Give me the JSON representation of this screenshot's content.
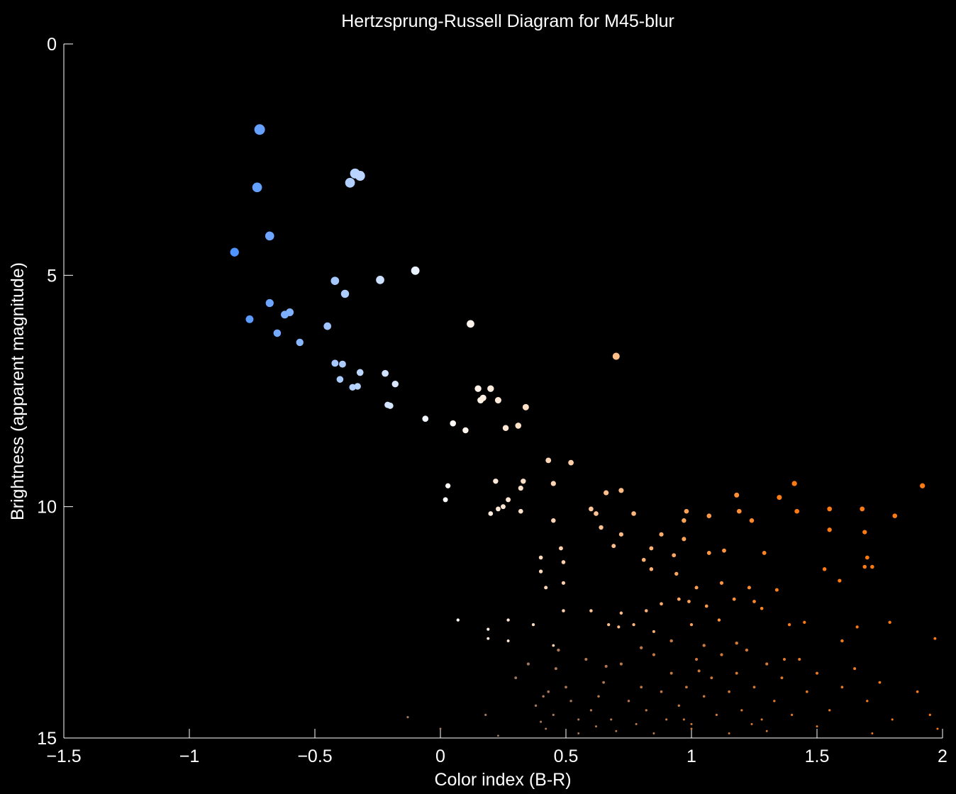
{
  "chart_data": {
    "type": "scatter",
    "title": "Hertzsprung-Russell Diagram for M45-blur",
    "xlabel": "Color index (B-R)",
    "ylabel": "Brightness (apparent magnitude)",
    "xlim": [
      -1.5,
      2
    ],
    "ylim": [
      0,
      15
    ],
    "y_inverted": true,
    "grid": false,
    "background": "#000000",
    "foreground": "#ffffff",
    "color_scale": {
      "blue": "#4a90ff",
      "white": "#ffffff",
      "orange": "#ff7a10",
      "faint": "#a07860"
    },
    "x_ticks": [
      "-1.5",
      "-1",
      "-0.5",
      "0",
      "0.5",
      "1",
      "1.5",
      "2"
    ],
    "y_ticks": [
      "0",
      "5",
      "10",
      "15"
    ],
    "series": [
      {
        "points": [
          [
            -0.72,
            1.85
          ],
          [
            -0.73,
            3.1
          ],
          [
            -0.34,
            2.8
          ],
          [
            -0.32,
            2.85
          ],
          [
            -0.36,
            3.0
          ],
          [
            -0.68,
            4.15
          ],
          [
            -0.82,
            4.5
          ],
          [
            -0.1,
            4.9
          ],
          [
            -0.24,
            5.1
          ],
          [
            -0.42,
            5.12
          ],
          [
            -0.38,
            5.4
          ],
          [
            -0.68,
            5.6
          ],
          [
            -0.6,
            5.8
          ],
          [
            -0.62,
            5.85
          ],
          [
            -0.76,
            5.95
          ],
          [
            -0.45,
            6.1
          ],
          [
            -0.65,
            6.25
          ],
          [
            -0.56,
            6.45
          ],
          [
            0.12,
            6.05
          ],
          [
            0.7,
            6.75
          ],
          [
            -0.42,
            6.9
          ],
          [
            -0.39,
            6.92
          ],
          [
            -0.32,
            7.1
          ],
          [
            -0.22,
            7.12
          ],
          [
            -0.4,
            7.25
          ],
          [
            -0.33,
            7.4
          ],
          [
            -0.35,
            7.42
          ],
          [
            -0.18,
            7.35
          ],
          [
            0.15,
            7.45
          ],
          [
            0.2,
            7.45
          ],
          [
            0.16,
            7.7
          ],
          [
            0.17,
            7.65
          ],
          [
            0.23,
            7.7
          ],
          [
            -0.21,
            7.8
          ],
          [
            -0.2,
            7.82
          ],
          [
            0.34,
            7.85
          ],
          [
            -0.06,
            8.1
          ],
          [
            0.05,
            8.2
          ],
          [
            0.1,
            8.35
          ],
          [
            0.26,
            8.3
          ],
          [
            0.31,
            8.25
          ],
          [
            0.43,
            9.0
          ],
          [
            0.52,
            9.05
          ],
          [
            0.22,
            9.45
          ],
          [
            0.33,
            9.45
          ],
          [
            0.03,
            9.55
          ],
          [
            0.32,
            9.6
          ],
          [
            0.45,
            9.5
          ],
          [
            0.02,
            9.85
          ],
          [
            0.27,
            9.85
          ],
          [
            0.25,
            10.0
          ],
          [
            0.23,
            10.05
          ],
          [
            0.2,
            10.15
          ],
          [
            0.32,
            10.1
          ],
          [
            0.45,
            10.3
          ],
          [
            0.66,
            9.7
          ],
          [
            0.72,
            9.65
          ],
          [
            0.6,
            10.05
          ],
          [
            0.62,
            10.15
          ],
          [
            0.64,
            10.45
          ],
          [
            0.72,
            10.6
          ],
          [
            0.69,
            10.85
          ],
          [
            0.48,
            10.9
          ],
          [
            0.4,
            11.1
          ],
          [
            0.49,
            11.2
          ],
          [
            0.4,
            11.4
          ],
          [
            0.49,
            11.65
          ],
          [
            0.42,
            11.75
          ],
          [
            0.77,
            10.15
          ],
          [
            0.88,
            10.6
          ],
          [
            0.84,
            10.9
          ],
          [
            0.98,
            10.1
          ],
          [
            0.97,
            10.3
          ],
          [
            0.97,
            10.7
          ],
          [
            0.93,
            11.05
          ],
          [
            1.07,
            10.2
          ],
          [
            1.07,
            11.0
          ],
          [
            1.13,
            10.95
          ],
          [
            0.81,
            11.15
          ],
          [
            0.84,
            11.35
          ],
          [
            0.94,
            11.45
          ],
          [
            1.18,
            9.75
          ],
          [
            1.19,
            10.1
          ],
          [
            1.24,
            10.3
          ],
          [
            1.35,
            9.8
          ],
          [
            1.41,
            9.5
          ],
          [
            1.42,
            10.1
          ],
          [
            1.55,
            10.05
          ],
          [
            1.55,
            10.5
          ],
          [
            1.68,
            10.05
          ],
          [
            1.69,
            10.55
          ],
          [
            1.81,
            10.2
          ],
          [
            1.92,
            9.55
          ],
          [
            1.29,
            11.0
          ],
          [
            1.34,
            11.8
          ],
          [
            1.53,
            11.35
          ],
          [
            1.59,
            11.6
          ],
          [
            1.7,
            11.1
          ],
          [
            1.69,
            11.3
          ],
          [
            1.72,
            11.3
          ],
          [
            1.02,
            11.75
          ],
          [
            1.12,
            11.65
          ],
          [
            1.23,
            11.75
          ],
          [
            1.25,
            12.05
          ],
          [
            1.28,
            12.2
          ],
          [
            1.06,
            12.15
          ],
          [
            1.17,
            12.0
          ],
          [
            0.99,
            12.05
          ],
          [
            0.95,
            12.0
          ],
          [
            0.88,
            12.1
          ],
          [
            0.82,
            12.25
          ],
          [
            0.72,
            12.3
          ],
          [
            0.71,
            12.6
          ],
          [
            0.6,
            12.25
          ],
          [
            0.67,
            12.55
          ],
          [
            0.77,
            12.55
          ],
          [
            0.85,
            12.7
          ],
          [
            1.0,
            12.55
          ],
          [
            1.11,
            12.45
          ],
          [
            1.39,
            12.55
          ],
          [
            1.45,
            12.5
          ],
          [
            1.66,
            12.6
          ],
          [
            1.79,
            12.5
          ],
          [
            1.97,
            12.85
          ],
          [
            0.07,
            12.45
          ],
          [
            0.19,
            12.65
          ],
          [
            0.19,
            12.85
          ],
          [
            0.27,
            12.45
          ],
          [
            0.27,
            12.9
          ],
          [
            0.37,
            12.55
          ],
          [
            0.49,
            12.25
          ],
          [
            0.45,
            13.0
          ]
        ],
        "faint_points": [
          [
            0.3,
            13.7
          ],
          [
            0.35,
            13.4
          ],
          [
            0.38,
            14.3
          ],
          [
            0.41,
            14.1
          ],
          [
            0.43,
            14.0
          ],
          [
            0.45,
            14.5
          ],
          [
            0.47,
            13.1
          ],
          [
            0.5,
            13.9
          ],
          [
            0.52,
            14.2
          ],
          [
            0.55,
            14.6
          ],
          [
            0.58,
            13.3
          ],
          [
            0.6,
            14.4
          ],
          [
            0.63,
            14.1
          ],
          [
            0.65,
            13.8
          ],
          [
            0.68,
            14.6
          ],
          [
            0.72,
            13.4
          ],
          [
            0.75,
            14.2
          ],
          [
            0.78,
            14.7
          ],
          [
            0.8,
            13.9
          ],
          [
            0.82,
            14.4
          ],
          [
            0.85,
            13.2
          ],
          [
            0.88,
            14.0
          ],
          [
            0.9,
            14.6
          ],
          [
            0.92,
            13.6
          ],
          [
            0.95,
            14.3
          ],
          [
            0.98,
            13.9
          ],
          [
            1.0,
            14.7
          ],
          [
            1.02,
            13.3
          ],
          [
            1.05,
            14.1
          ],
          [
            1.08,
            13.7
          ],
          [
            1.1,
            14.5
          ],
          [
            1.12,
            13.2
          ],
          [
            1.15,
            14.0
          ],
          [
            1.18,
            13.6
          ],
          [
            1.2,
            14.4
          ],
          [
            1.22,
            13.1
          ],
          [
            1.25,
            13.9
          ],
          [
            1.28,
            14.6
          ],
          [
            1.3,
            13.4
          ],
          [
            1.33,
            14.2
          ],
          [
            1.36,
            13.7
          ],
          [
            1.4,
            14.5
          ],
          [
            1.43,
            13.3
          ],
          [
            1.46,
            14.0
          ],
          [
            1.5,
            13.6
          ],
          [
            1.55,
            14.4
          ],
          [
            1.6,
            13.9
          ],
          [
            1.65,
            13.5
          ],
          [
            1.7,
            14.2
          ],
          [
            1.75,
            13.8
          ],
          [
            1.8,
            14.6
          ],
          [
            1.9,
            14.0
          ],
          [
            1.95,
            14.5
          ],
          [
            0.42,
            14.8
          ],
          [
            0.55,
            14.9
          ],
          [
            0.7,
            14.85
          ],
          [
            0.85,
            14.9
          ],
          [
            1.0,
            14.8
          ],
          [
            1.15,
            14.9
          ],
          [
            1.3,
            14.85
          ],
          [
            0.92,
            12.9
          ],
          [
            1.05,
            13.0
          ],
          [
            1.18,
            12.95
          ],
          [
            0.8,
            13.05
          ],
          [
            -0.13,
            14.55
          ],
          [
            0.18,
            14.5
          ],
          [
            0.0,
            14.8
          ],
          [
            0.23,
            14.95
          ],
          [
            0.4,
            14.65
          ],
          [
            0.62,
            14.75
          ],
          [
            0.97,
            14.6
          ],
          [
            1.24,
            14.7
          ],
          [
            1.5,
            14.75
          ],
          [
            1.72,
            14.9
          ],
          [
            1.98,
            14.8
          ],
          [
            0.46,
            13.5
          ],
          [
            0.66,
            13.45
          ],
          [
            1.03,
            13.55
          ],
          [
            1.37,
            13.3
          ],
          [
            1.6,
            12.9
          ]
        ]
      }
    ]
  }
}
